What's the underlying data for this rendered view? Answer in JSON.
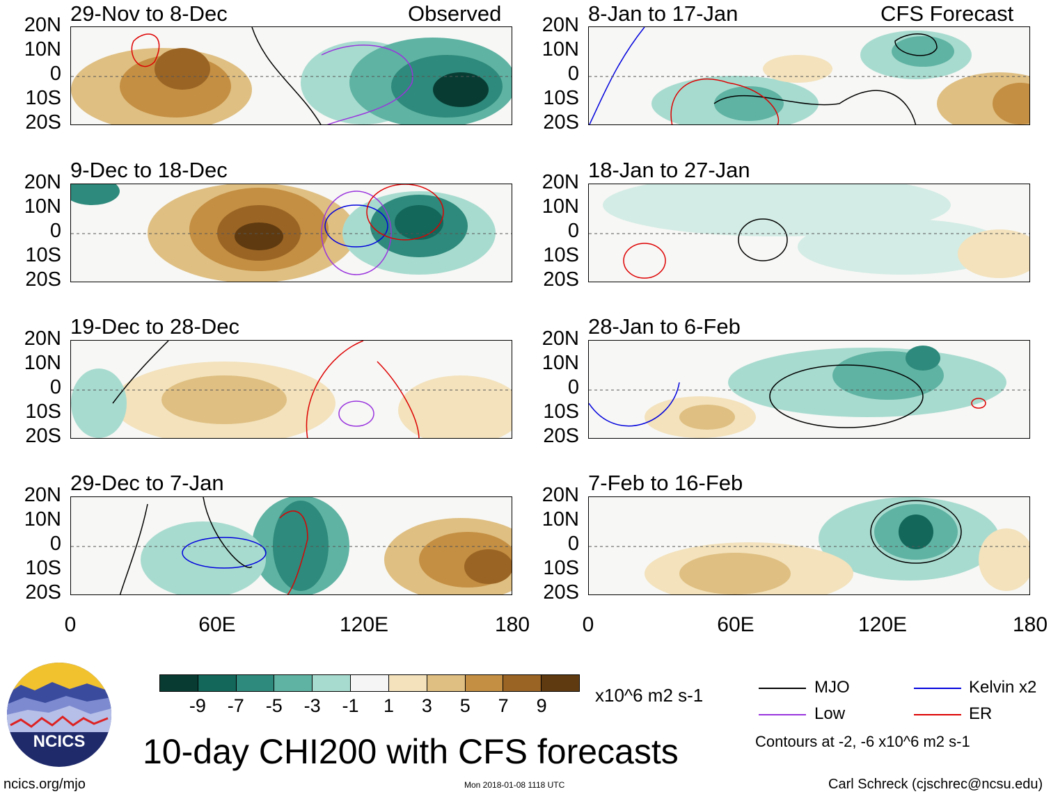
{
  "title": "10-day CHI200 with CFS forecasts",
  "observed_label": "Observed",
  "forecast_label": "CFS Forecast",
  "latitude_labels": [
    "20N",
    "10N",
    "0",
    "10S",
    "20S"
  ],
  "longitude_labels": [
    "0",
    "60E",
    "120E",
    "180"
  ],
  "panels_left": [
    {
      "period": "29-Nov to 8-Dec"
    },
    {
      "period": "9-Dec to 18-Dec"
    },
    {
      "period": "19-Dec to 28-Dec"
    },
    {
      "period": "29-Dec to 7-Jan"
    }
  ],
  "panels_right": [
    {
      "period": "8-Jan to 17-Jan"
    },
    {
      "period": "18-Jan to 27-Jan"
    },
    {
      "period": "28-Jan to 6-Feb"
    },
    {
      "period": "7-Feb to 16-Feb"
    }
  ],
  "colorbar": {
    "ticks": [
      "-9",
      "-7",
      "-5",
      "-3",
      "-1",
      "1",
      "3",
      "5",
      "7",
      "9"
    ],
    "units": "x10^6 m2 s-1",
    "colors": [
      "#083c33",
      "#12665a",
      "#2e8a7c",
      "#5fb3a3",
      "#a8dbcf",
      "#f5f5f5",
      "#f3e2bc",
      "#dfbf82",
      "#c48f43",
      "#9a6424",
      "#5f3a10"
    ]
  },
  "legend": {
    "items": [
      {
        "label": "MJO",
        "color": "#000000"
      },
      {
        "label": "Kelvin x2",
        "color": "#0000dd"
      },
      {
        "label": "Low",
        "color": "#9933dd"
      },
      {
        "label": "ER",
        "color": "#dd0000"
      }
    ],
    "contours_note": "Contours at -2, -6 x10^6 m2 s-1"
  },
  "logo_text": "NCICS",
  "footer": {
    "url": "ncics.org/mjo",
    "timestamp": "Mon 2018-01-08 1118 UTC",
    "credit": "Carl Schreck (cjschrec@ncsu.edu)"
  }
}
